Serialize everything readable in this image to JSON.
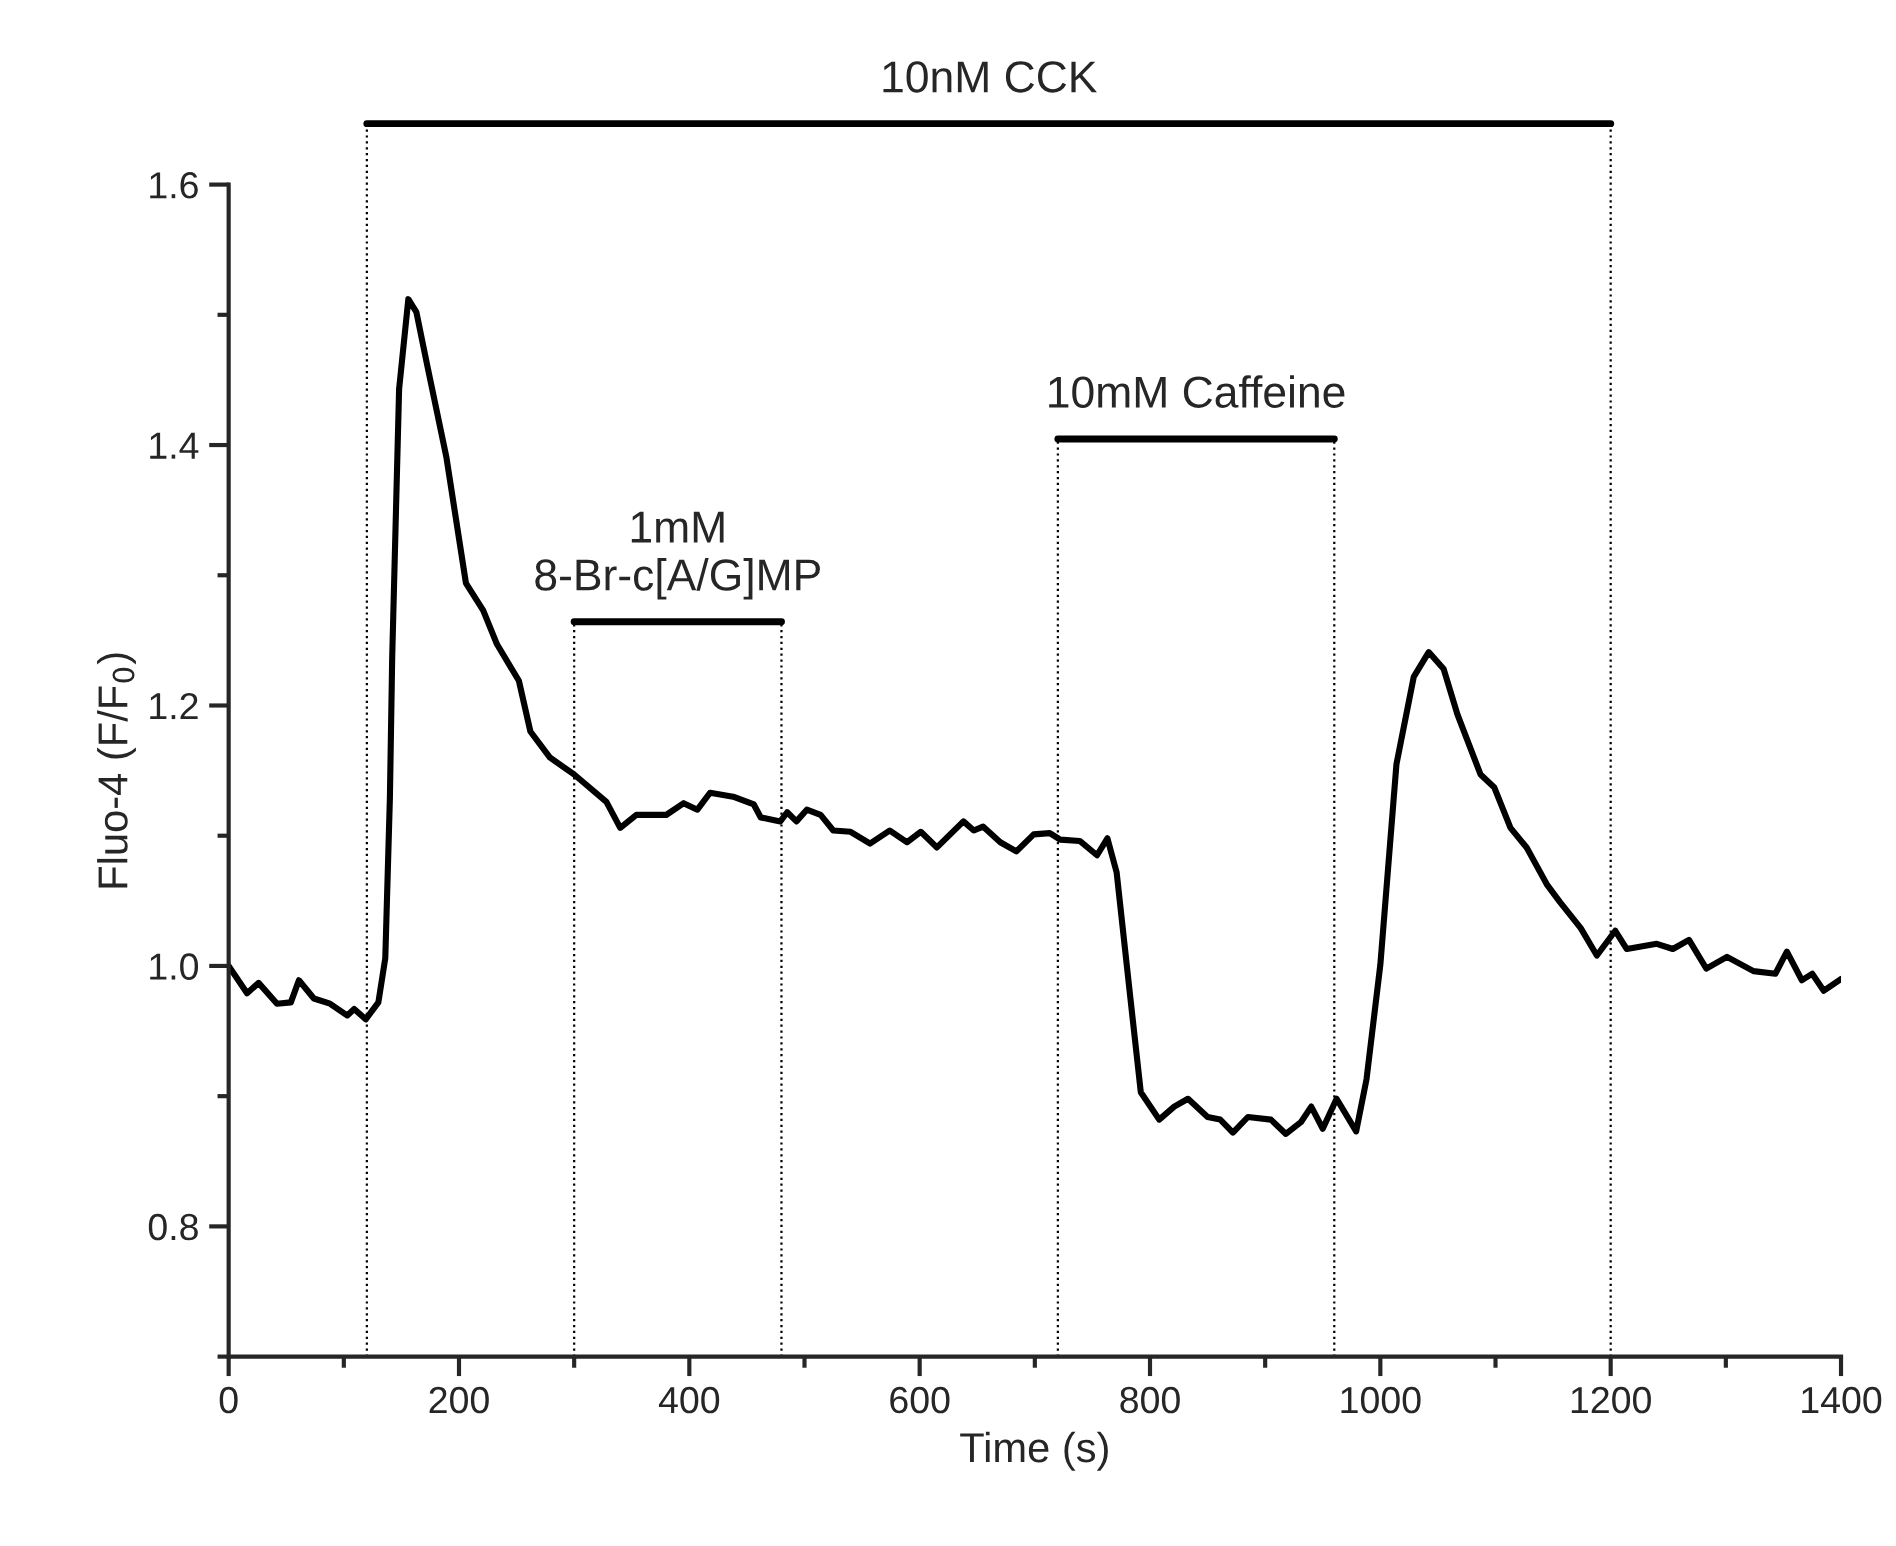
{
  "chart_data": {
    "type": "line",
    "xlabel": "Time (s)",
    "ylabel": "Fluo-4 (F/F$_{0}$)",
    "xlim": [
      0,
      1400
    ],
    "xticks": [
      0,
      200,
      400,
      600,
      800,
      1000,
      1200,
      1400
    ],
    "ylim": [
      0.7,
      1.6
    ],
    "yticks": [
      0.8,
      {
        "value": 1.0,
        "label": "1.0"
      },
      1.2,
      1.4,
      1.6
    ],
    "ref_lines": [
      {
        "axis": "x",
        "value": 120,
        "color": "#000000",
        "line_style": "dotted"
      },
      {
        "axis": "x",
        "value": 300,
        "color": "#000000",
        "line_style": "dotted"
      },
      {
        "axis": "x",
        "value": 480,
        "color": "#000000",
        "line_style": "dotted"
      },
      {
        "axis": "x",
        "value": 720,
        "color": "#000000",
        "line_style": "dotted"
      },
      {
        "axis": "x",
        "value": 960,
        "color": "#000000",
        "line_style": "dotted"
      },
      {
        "axis": "x",
        "value": 1200,
        "color": "#000000",
        "line_style": "dotted"
      }
    ],
    "grid": false,
    "legend": false,
    "marker": "none",
    "line_style": "solid",
    "annotations": [
      "10nM CCK",
      "1mM\n8-Br-c[A/G]MP",
      "10mM Caffeine"
    ],
    "series": [
      {
        "color": "#000000",
        "x": [
          0,
          16,
          26,
          42,
          54,
          61,
          74,
          88,
          103,
          109,
          119,
          130,
          136,
          140,
          142,
          148,
          156,
          163,
          172,
          189,
          206,
          221,
          233,
          252,
          262,
          279,
          300,
          328,
          340,
          354,
          380,
          395,
          407,
          418,
          438,
          456,
          462,
          479,
          485,
          493,
          502,
          514,
          525,
          540,
          557,
          574,
          589,
          601,
          615,
          638,
          647,
          655,
          670,
          684,
          699,
          713,
          722,
          739,
          754,
          763,
          771,
          783,
          792,
          808,
          821,
          833,
          850,
          861,
          872,
          885,
          905,
          918,
          931,
          940,
          950,
          962,
          979,
          988,
          1000,
          1014,
          1029,
          1042,
          1055,
          1067,
          1087,
          1099,
          1113,
          1127,
          1145,
          1156,
          1174,
          1188,
          1204,
          1214,
          1240,
          1254,
          1268,
          1283,
          1301,
          1324,
          1343,
          1353,
          1366,
          1375,
          1385,
          1400
        ],
        "values": [
          1.0,
          0.979,
          0.987,
          0.971,
          0.972,
          0.989,
          0.975,
          0.971,
          0.962,
          0.967,
          0.959,
          0.972,
          1.006,
          1.129,
          1.237,
          1.443,
          1.512,
          1.502,
          1.463,
          1.391,
          1.294,
          1.273,
          1.247,
          1.219,
          1.18,
          1.16,
          1.147,
          1.126,
          1.106,
          1.116,
          1.116,
          1.125,
          1.12,
          1.133,
          1.13,
          1.124,
          1.114,
          1.111,
          1.118,
          1.111,
          1.12,
          1.116,
          1.104,
          1.103,
          1.094,
          1.104,
          1.095,
          1.103,
          1.091,
          1.111,
          1.104,
          1.107,
          1.095,
          1.088,
          1.101,
          1.102,
          1.097,
          1.096,
          1.085,
          1.098,
          1.072,
          0.975,
          0.903,
          0.882,
          0.892,
          0.898,
          0.884,
          0.882,
          0.872,
          0.884,
          0.882,
          0.871,
          0.88,
          0.892,
          0.875,
          0.898,
          0.873,
          0.913,
          1.001,
          1.155,
          1.222,
          1.241,
          1.228,
          1.193,
          1.147,
          1.137,
          1.106,
          1.091,
          1.062,
          1.049,
          1.029,
          1.008,
          1.027,
          1.013,
          1.017,
          1.013,
          1.02,
          0.998,
          1.007,
          0.996,
          0.994,
          1.011,
          0.989,
          0.994,
          0.981,
          0.99
        ]
      }
    ]
  }
}
